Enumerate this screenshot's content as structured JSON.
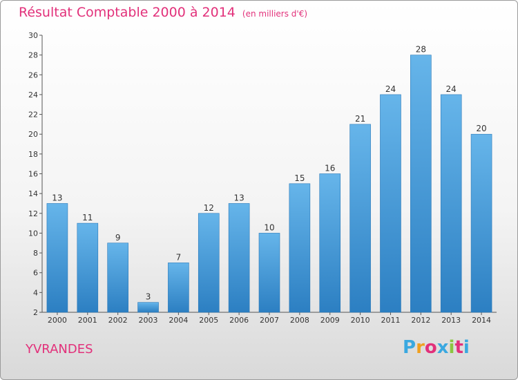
{
  "title": "Résultat Comptable 2000 à 2014",
  "subtitle": "(en milliers d'€)",
  "commune": "YVRANDES",
  "logo": {
    "letters": [
      "P",
      "r",
      "o",
      "x",
      "i",
      "t",
      "i"
    ],
    "colors": [
      "#3aa8e0",
      "#f0a020",
      "#e2307a",
      "#3aa8e0",
      "#8bc540",
      "#e2307a",
      "#3aa8e0"
    ]
  },
  "colors": {
    "bar_top": "#66b5ea",
    "bar_bottom": "#2c7fc2",
    "accent": "#e2307a"
  },
  "chart_data": {
    "type": "bar",
    "categories": [
      "2000",
      "2001",
      "2002",
      "2003",
      "2004",
      "2005",
      "2006",
      "2007",
      "2008",
      "2009",
      "2010",
      "2011",
      "2012",
      "2013",
      "2014"
    ],
    "values": [
      13,
      11,
      9,
      3,
      7,
      12,
      13,
      10,
      15,
      16,
      21,
      24,
      28,
      24,
      20
    ],
    "ylim": [
      2,
      30
    ],
    "yticks": [
      2,
      4,
      6,
      8,
      10,
      12,
      14,
      16,
      18,
      20,
      22,
      24,
      26,
      28,
      30
    ],
    "grid": false,
    "xlabel": "",
    "ylabel": ""
  }
}
